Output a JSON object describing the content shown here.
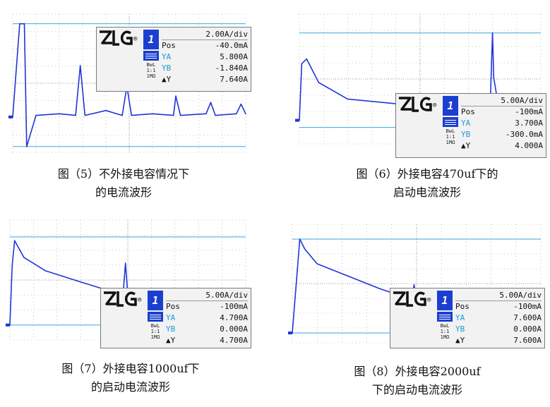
{
  "colors": {
    "trace": "#1f35d8",
    "cursor": "#39a6df",
    "grid": "#9b9b9b",
    "cyan": "#1c9ad6"
  },
  "readout_labels": {
    "channel": "1",
    "pos": "Pos",
    "ya": "YA",
    "yb": "YB",
    "dy": "▲Y",
    "bwl": "BwL",
    "ratio": "1:1",
    "imp": "1MΩ",
    "logo": "ZLG",
    "reg": "®"
  },
  "panels": [
    {
      "caption_lines": [
        "图（5）不外接电容情况下",
        "的电流波形"
      ],
      "readout": {
        "div": "2.00A/div",
        "pos": "-40.0mA",
        "ya": "5.800A",
        "yb": "-1.840A",
        "dy": "7.640A"
      }
    },
    {
      "caption_lines": [
        "图（6）外接电容470uf下的",
        "启动电流波形"
      ],
      "readout": {
        "div": "5.00A/div",
        "pos": "-100mA",
        "ya": "3.700A",
        "yb": "-300.0mA",
        "dy": "4.000A"
      }
    },
    {
      "caption_lines": [
        "图（7）外接电容1000uf下",
        "的启动电流波形"
      ],
      "readout": {
        "div": "5.00A/div",
        "pos": "-100mA",
        "ya": "4.700A",
        "yb": "0.000A",
        "dy": "4.700A"
      }
    },
    {
      "caption_lines": [
        "图（8）外接电容2000uf",
        "下的启动电流波形"
      ],
      "readout": {
        "div": "5.00A/div",
        "pos": "-100mA",
        "ya": "7.600A",
        "yb": "0.000A",
        "dy": "7.600A"
      }
    }
  ],
  "chart_data": [
    {
      "type": "line",
      "ylabel": "A",
      "cursor_a": 5.8,
      "cursor_b": -1.84,
      "ylim": [
        -2.2,
        6.4
      ],
      "series": [
        {
          "x": [
            0,
            0.03,
            0.05,
            0.06,
            0.1,
            0.2,
            0.27,
            0.29,
            0.31,
            0.4,
            0.47,
            0.49,
            0.51,
            0.6,
            0.69,
            0.7,
            0.72,
            0.83,
            0.85,
            0.87,
            0.96,
            0.98,
            1.0
          ],
          "values": [
            0,
            5.8,
            5.8,
            -1.84,
            0.1,
            0.2,
            0.1,
            3.2,
            0.1,
            0.4,
            0.1,
            1.9,
            0.1,
            0.2,
            0.1,
            1.3,
            0.1,
            0.2,
            0.9,
            0.1,
            0.2,
            0.8,
            0.2
          ]
        }
      ]
    },
    {
      "type": "line",
      "ylabel": "A",
      "cursor_a": 3.7,
      "cursor_b": -0.3,
      "ylim": [
        -1.0,
        4.5
      ],
      "series": [
        {
          "x": [
            0,
            0.01,
            0.03,
            0.08,
            0.2,
            0.4,
            0.6,
            0.79,
            0.8,
            0.805,
            0.82,
            0.86,
            1.0
          ],
          "values": [
            0,
            2.4,
            2.6,
            1.6,
            0.9,
            0.7,
            0.6,
            0.55,
            3.7,
            1.8,
            0.9,
            0.45,
            0.4
          ]
        }
      ]
    },
    {
      "type": "line",
      "ylabel": "A",
      "cursor_a": 4.7,
      "cursor_b": 0.0,
      "ylim": [
        -0.8,
        5.6
      ],
      "series": [
        {
          "x": [
            0,
            0.01,
            0.02,
            0.06,
            0.15,
            0.3,
            0.48,
            0.49,
            0.5,
            0.52,
            0.6,
            0.75,
            0.9,
            1.0
          ],
          "values": [
            0,
            3.2,
            4.5,
            3.6,
            2.9,
            2.3,
            1.6,
            3.3,
            1.6,
            1.4,
            1.3,
            1.2,
            1.0,
            0.9
          ]
        }
      ]
    },
    {
      "type": "line",
      "ylabel": "A",
      "cursor_a": 7.6,
      "cursor_b": 0.0,
      "ylim": [
        -0.8,
        8.8
      ],
      "series": [
        {
          "x": [
            0,
            0.02,
            0.03,
            0.05,
            0.1,
            0.2,
            0.35,
            0.48,
            0.49,
            0.5,
            0.6,
            0.75,
            0.9,
            1.0
          ],
          "values": [
            0,
            5.0,
            7.6,
            6.8,
            5.6,
            4.8,
            3.6,
            2.7,
            3.9,
            2.5,
            2.2,
            1.8,
            1.3,
            1.0
          ]
        }
      ]
    }
  ]
}
